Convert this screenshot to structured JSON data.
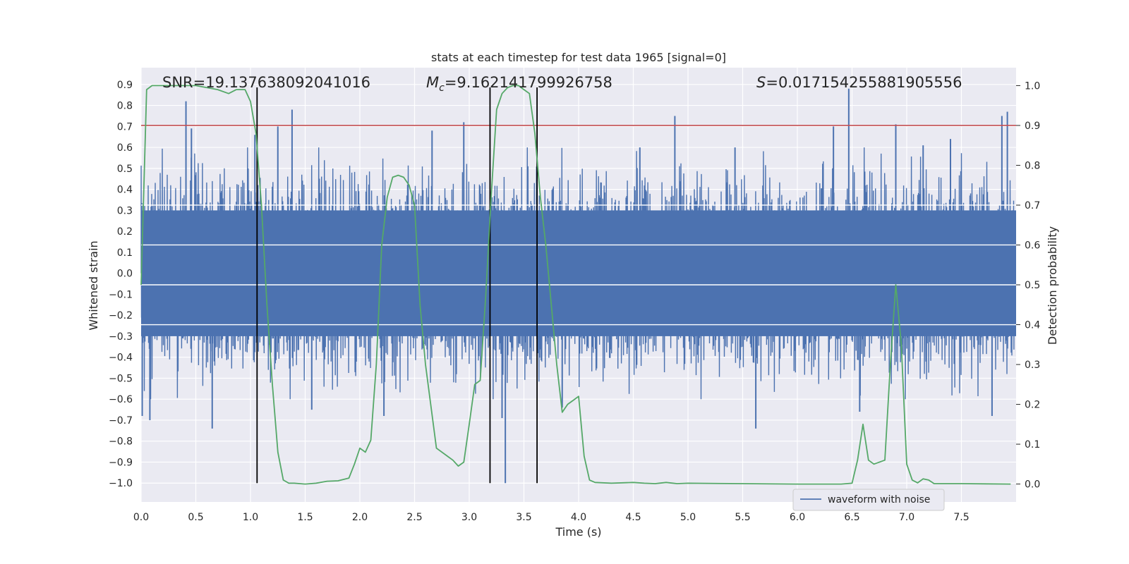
{
  "chart_data": {
    "type": "line",
    "title": "stats at each timestep for test data 1965 [signal=0]",
    "xlabel": "Time (s)",
    "ylabel_left": "Whitened strain",
    "ylabel_right": "Detection probability",
    "xlim": [
      0.0,
      8.0
    ],
    "ylim_left": [
      -1.09,
      0.98
    ],
    "ylim_right": [
      -0.045,
      1.045
    ],
    "x_ticks": [
      "0.0",
      "0.5",
      "1.0",
      "1.5",
      "2.0",
      "2.5",
      "3.0",
      "3.5",
      "4.0",
      "4.5",
      "5.0",
      "5.5",
      "6.0",
      "6.5",
      "7.0",
      "7.5"
    ],
    "y_ticks_left": [
      "0.9",
      "0.8",
      "0.7",
      "0.6",
      "0.5",
      "0.4",
      "0.3",
      "0.2",
      "0.1",
      "0.0",
      "−0.1",
      "−0.2",
      "−0.3",
      "−0.4",
      "−0.5",
      "−0.6",
      "−0.7",
      "−0.8",
      "−0.9",
      "−1.0"
    ],
    "y_ticks_right": [
      "1.0",
      "0.9",
      "0.8",
      "0.7",
      "0.6",
      "0.5",
      "0.4",
      "0.3",
      "0.2",
      "0.1",
      "0.0"
    ],
    "grid": true,
    "legend": {
      "position": "lower-right",
      "entries": [
        "waveform with noise"
      ]
    },
    "annotations": {
      "snr": "SNR=19.137638092041016",
      "mc_symbol": "M",
      "mc_sub": "c",
      "mc_value": "=9.162141799926758",
      "s_symbol": "S",
      "s_value": "=0.017154255881905556"
    },
    "threshold_right": 0.9,
    "vertical_markers": [
      1.06,
      3.19,
      3.62
    ],
    "noise_series": {
      "name": "waveform with noise",
      "color": "#4c72b0",
      "typical_amplitude": 0.3,
      "peaks": [
        {
          "t": 0.01,
          "v": -0.68
        },
        {
          "t": 0.08,
          "v": -0.7
        },
        {
          "t": 0.41,
          "v": 0.82
        },
        {
          "t": 0.46,
          "v": 0.69
        },
        {
          "t": 0.65,
          "v": -0.74
        },
        {
          "t": 1.04,
          "v": 0.66
        },
        {
          "t": 1.25,
          "v": 0.7
        },
        {
          "t": 1.38,
          "v": 0.78
        },
        {
          "t": 1.56,
          "v": -0.65
        },
        {
          "t": 2.22,
          "v": -0.68
        },
        {
          "t": 2.66,
          "v": 0.68
        },
        {
          "t": 2.95,
          "v": 0.72
        },
        {
          "t": 3.3,
          "v": -0.69
        },
        {
          "t": 3.33,
          "v": -1.0
        },
        {
          "t": 3.85,
          "v": -0.64
        },
        {
          "t": 4.56,
          "v": 0.6
        },
        {
          "t": 4.88,
          "v": 0.75
        },
        {
          "t": 5.43,
          "v": 0.6
        },
        {
          "t": 5.62,
          "v": -0.74
        },
        {
          "t": 6.33,
          "v": 0.7
        },
        {
          "t": 6.47,
          "v": 0.88
        },
        {
          "t": 6.57,
          "v": -0.66
        },
        {
          "t": 6.9,
          "v": 0.71
        },
        {
          "t": 7.15,
          "v": 0.61
        },
        {
          "t": 7.4,
          "v": 0.64
        },
        {
          "t": 7.78,
          "v": -0.68
        },
        {
          "t": 7.87,
          "v": 0.75
        },
        {
          "t": 7.92,
          "v": 0.77
        }
      ]
    },
    "probability_series": {
      "color": "#55a868",
      "x": [
        0.0,
        0.05,
        0.1,
        0.2,
        0.3,
        0.4,
        0.5,
        0.6,
        0.7,
        0.8,
        0.87,
        0.95,
        1.0,
        1.05,
        1.1,
        1.15,
        1.2,
        1.25,
        1.3,
        1.35,
        1.4,
        1.5,
        1.6,
        1.7,
        1.8,
        1.9,
        1.95,
        2.0,
        2.05,
        2.1,
        2.15,
        2.2,
        2.25,
        2.3,
        2.35,
        2.4,
        2.45,
        2.5,
        2.55,
        2.6,
        2.7,
        2.8,
        2.85,
        2.9,
        2.95,
        3.0,
        3.05,
        3.1,
        3.15,
        3.2,
        3.25,
        3.3,
        3.35,
        3.4,
        3.45,
        3.5,
        3.55,
        3.6,
        3.65,
        3.7,
        3.75,
        3.8,
        3.85,
        3.9,
        3.95,
        4.0,
        4.05,
        4.1,
        4.15,
        4.3,
        4.5,
        4.6,
        4.7,
        4.8,
        4.9,
        5.0,
        5.5,
        6.0,
        6.4,
        6.5,
        6.55,
        6.6,
        6.65,
        6.7,
        6.8,
        6.85,
        6.9,
        6.95,
        7.0,
        7.05,
        7.1,
        7.15,
        7.2,
        7.25,
        7.3,
        7.5,
        7.95
      ],
      "values": [
        0.5,
        0.99,
        1.0,
        1.0,
        1.0,
        1.0,
        1.0,
        0.995,
        0.99,
        0.98,
        0.99,
        0.99,
        0.96,
        0.88,
        0.7,
        0.45,
        0.25,
        0.08,
        0.01,
        0.002,
        0.002,
        0.0,
        0.002,
        0.007,
        0.008,
        0.015,
        0.05,
        0.09,
        0.08,
        0.11,
        0.3,
        0.6,
        0.72,
        0.77,
        0.775,
        0.77,
        0.75,
        0.7,
        0.45,
        0.3,
        0.09,
        0.07,
        0.06,
        0.045,
        0.055,
        0.15,
        0.25,
        0.26,
        0.47,
        0.72,
        0.94,
        0.98,
        0.995,
        1.0,
        1.0,
        0.99,
        0.98,
        0.88,
        0.72,
        0.6,
        0.45,
        0.3,
        0.18,
        0.2,
        0.21,
        0.22,
        0.07,
        0.01,
        0.004,
        0.002,
        0.004,
        0.002,
        0.001,
        0.004,
        0.001,
        0.002,
        0.001,
        0.0,
        0.0,
        0.002,
        0.06,
        0.15,
        0.06,
        0.05,
        0.06,
        0.3,
        0.5,
        0.35,
        0.05,
        0.01,
        0.003,
        0.013,
        0.01,
        0.001,
        0.001,
        0.001,
        0.0
      ]
    }
  }
}
